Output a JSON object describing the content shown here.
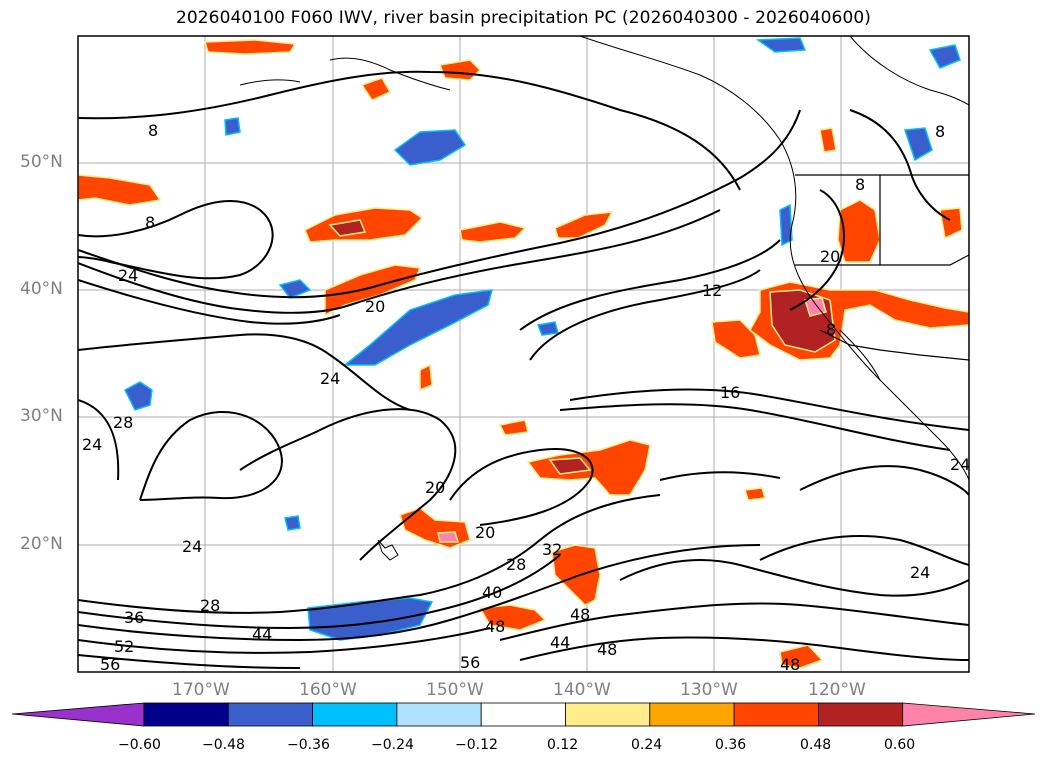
{
  "title": "2026040100 F060 IWV, river basin precipitation PC (2026040300 - 2026040600)",
  "map": {
    "lat_labels": [
      "50°N",
      "40°N",
      "30°N",
      "20°N"
    ],
    "lon_labels": [
      "170°W",
      "160°W",
      "150°W",
      "140°W",
      "130°W",
      "120°W"
    ],
    "contour_labels": [
      "8",
      "8",
      "8",
      "8",
      "24",
      "24",
      "28",
      "24",
      "20",
      "20",
      "24",
      "28",
      "36",
      "52",
      "56",
      "44",
      "40",
      "32",
      "28",
      "20",
      "48",
      "48",
      "44",
      "48",
      "56",
      "48",
      "12",
      "16",
      "8",
      "24",
      "24",
      "20"
    ]
  },
  "colorbar": {
    "colors": [
      "#9932cc",
      "#00008b",
      "#3a5fcd",
      "#00bfff",
      "#b0e2ff",
      "#ffffff",
      "#ffec8b",
      "#ffa500",
      "#ff4500",
      "#b22222",
      "#ff82ab"
    ],
    "tick_labels": [
      "−0.60",
      "−0.48",
      "−0.36",
      "−0.24",
      "−0.12",
      "0.12",
      "0.24",
      "0.36",
      "0.48",
      "0.60"
    ]
  }
}
